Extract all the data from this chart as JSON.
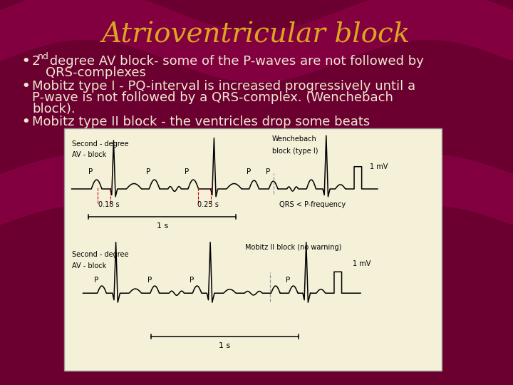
{
  "title": "Atrioventricular block",
  "title_color": "#DAA520",
  "title_fontsize": 28,
  "bg_color": "#6B0030",
  "bullet_color": "#F0E8D0",
  "bullet_fontsize": 13,
  "diagram_bg": "#F5F0D8",
  "diagram_border": "#CCCCCC",
  "wave_color": "#8B0045",
  "bullets": [
    "degree AV block- some of the P-waves are not followed by QRS-complexes",
    "Mobitz type I - PQ-interval is increased progressively until a P-wave is not followed by a QRS-complex. (Wenchebach block).",
    "Mobitz type II block - the ventricles drop some beats"
  ]
}
